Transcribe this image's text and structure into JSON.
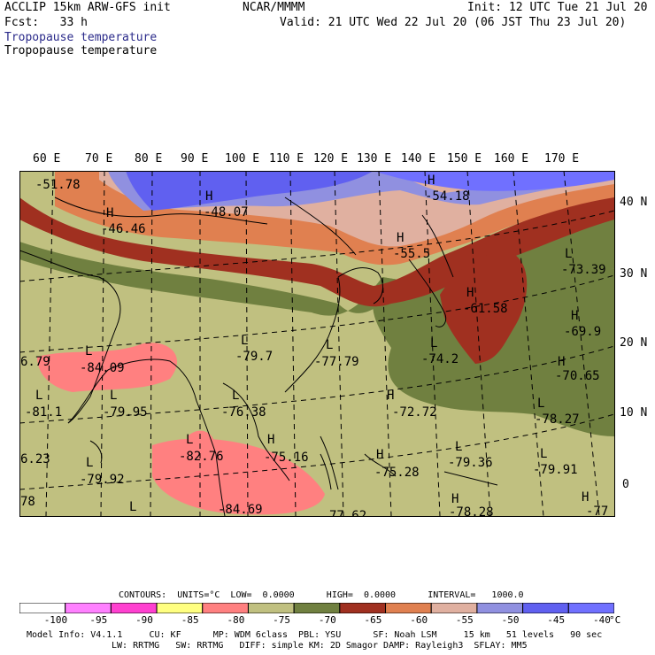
{
  "header": {
    "model": "ACCLIP 15km ARW-GFS init",
    "center": "NCAR/MMMM",
    "init": "Init: 12 UTC Tue 21 Jul 20",
    "fcst": "Fcst:   33 h",
    "valid": "Valid: 21 UTC Wed 22 Jul 20 (06 JST Thu 23 Jul 20)",
    "field_blue": "Tropopause temperature",
    "field_black": "Tropopause temperature"
  },
  "lon_labels": [
    "60 E",
    "70 E",
    "80 E",
    "90 E",
    "100 E",
    "110 E",
    "120 E",
    "130 E",
    "140 E",
    "150 E",
    "160 E",
    "170 E"
  ],
  "lat_labels": [
    "40 N",
    "30 N",
    "20 N",
    "10 N",
    "0"
  ],
  "extrema": [
    {
      "type": "H",
      "value": "-51.78"
    },
    {
      "type": "H",
      "value": "-48.07"
    },
    {
      "type": "H",
      "value": "-46.46"
    },
    {
      "type": "H",
      "value": "-54.18"
    },
    {
      "type": "H",
      "value": "-55.5"
    },
    {
      "type": "L",
      "value": "-73.39"
    },
    {
      "type": "H",
      "value": "-61.58"
    },
    {
      "type": "H",
      "value": "-69.9"
    },
    {
      "type": "L",
      "value": "-79.7"
    },
    {
      "type": "L",
      "value": "-77.79"
    },
    {
      "type": "L",
      "value": "-74.2"
    },
    {
      "type": "H",
      "value": "-70.65"
    },
    {
      "type": "L",
      "value": "-84.09"
    },
    {
      "type": "",
      "value": "6.79"
    },
    {
      "type": "L",
      "value": "-81.1"
    },
    {
      "type": "L",
      "value": "-79.95"
    },
    {
      "type": "L",
      "value": "-76.38"
    },
    {
      "type": "H",
      "value": "-72.72"
    },
    {
      "type": "L",
      "value": "-78.27"
    },
    {
      "type": "L",
      "value": "-82.76"
    },
    {
      "type": "H",
      "value": "-75.16"
    },
    {
      "type": "H",
      "value": "-75.28"
    },
    {
      "type": "L",
      "value": "-79.36"
    },
    {
      "type": "L",
      "value": "-79.91"
    },
    {
      "type": "",
      "value": "6.23"
    },
    {
      "type": "L",
      "value": "-79.92"
    },
    {
      "type": "",
      "value": "78"
    },
    {
      "type": "L",
      "value": "-84.69"
    },
    {
      "type": "",
      "value": "77.62"
    },
    {
      "type": "H",
      "value": "-78.28"
    },
    {
      "type": "H",
      "value": "-77"
    }
  ],
  "contours_line": "CONTOURS:  UNITS=°C  LOW=  0.0000      HIGH=  0.0000      INTERVAL=   1000.0",
  "colorbar": {
    "labels": [
      "-100",
      "-95",
      "-90",
      "-85",
      "-80",
      "-75",
      "-70",
      "-65",
      "-60",
      "-55",
      "-50",
      "-45",
      "-40",
      "°C"
    ],
    "colors": [
      "#ffffff",
      "#ff80ff",
      "#ff40d0",
      "#ffff80",
      "#ff8080",
      "#c0c080",
      "#708040",
      "#a03020",
      "#e08050",
      "#e0b0a0",
      "#9090e0",
      "#6060f0",
      "#7070ff"
    ]
  },
  "footer": {
    "line1": "Model Info: V4.1.1     CU: KF      MP: WDM 6class  PBL: YSU      SF: Noah LSM     15 km   51 levels   90 sec",
    "line2": "LW: RRTMG   SW: RRTMG   DIFF: simple KM: 2D Smagor DAMP: Rayleigh3  SFLAY: MM5"
  }
}
